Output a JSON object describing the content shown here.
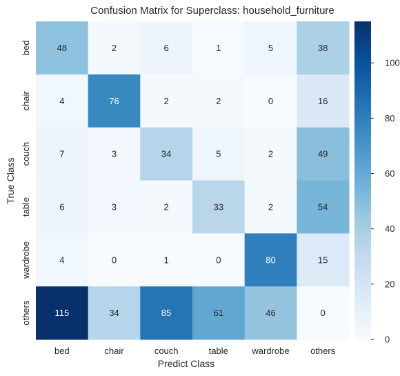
{
  "chart_data": {
    "type": "heatmap",
    "title": "Confusion Matrix for Superclass: household_furniture",
    "xlabel": "Predict Class",
    "ylabel": "True Class",
    "x_categories": [
      "bed",
      "chair",
      "couch",
      "table",
      "wardrobe",
      "others"
    ],
    "y_categories": [
      "bed",
      "chair",
      "couch",
      "table",
      "wardrobe",
      "others"
    ],
    "values": [
      [
        48,
        2,
        6,
        1,
        5,
        38
      ],
      [
        4,
        76,
        2,
        2,
        0,
        16
      ],
      [
        7,
        3,
        34,
        5,
        2,
        49
      ],
      [
        6,
        3,
        2,
        33,
        2,
        54
      ],
      [
        4,
        0,
        1,
        0,
        80,
        15
      ],
      [
        115,
        34,
        85,
        61,
        46,
        0
      ]
    ],
    "colormap": "Blues",
    "value_range": [
      0,
      115
    ],
    "colorbar_ticks": [
      0,
      20,
      40,
      60,
      80,
      100
    ],
    "grid": false,
    "annotations": true
  }
}
